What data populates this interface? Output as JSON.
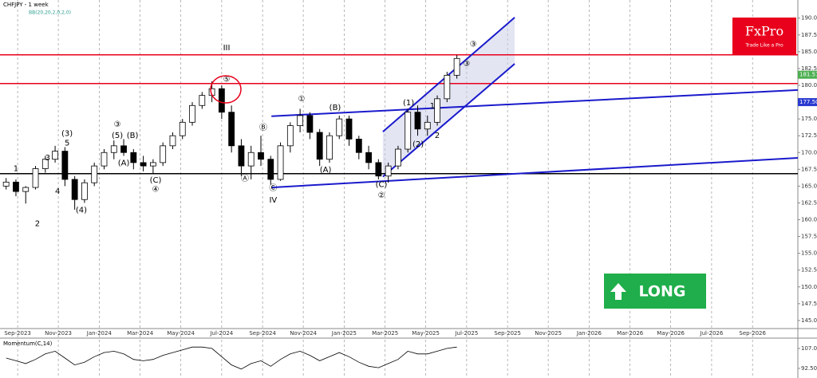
{
  "logo": {
    "name": "FxPro",
    "tagline": "Trade Like a Pro"
  },
  "badge": "LONG",
  "chart_data": [
    {
      "type": "candlestick",
      "title": "CHFJPY - 1 week",
      "subtitle": "BB(20,20,2,0,2,0)",
      "xlim": [
        2023.595,
        2026.852
      ],
      "ylim": [
        143.8,
        192.7
      ],
      "xticks": [
        {
          "value": 2023.667,
          "label": "Sep-2023"
        },
        {
          "value": 2023.833,
          "label": "Nov-2023"
        },
        {
          "value": 2024.0,
          "label": "Jan-2024"
        },
        {
          "value": 2024.167,
          "label": "Mar-2024"
        },
        {
          "value": 2024.333,
          "label": "May-2024"
        },
        {
          "value": 2024.5,
          "label": "Jul-2024"
        },
        {
          "value": 2024.667,
          "label": "Sep-2024"
        },
        {
          "value": 2024.833,
          "label": "Nov-2024"
        },
        {
          "value": 2025.0,
          "label": "Jan-2025"
        },
        {
          "value": 2025.167,
          "label": "Mar-2025"
        },
        {
          "value": 2025.333,
          "label": "May-2025"
        },
        {
          "value": 2025.5,
          "label": "Jul-2025"
        },
        {
          "value": 2025.667,
          "label": "Sep-2025"
        },
        {
          "value": 2025.833,
          "label": "Nov-2025"
        },
        {
          "value": 2026.0,
          "label": "Jan-2026"
        },
        {
          "value": 2026.167,
          "label": "Mar-2026"
        },
        {
          "value": 2026.333,
          "label": "May-2026"
        },
        {
          "value": 2026.5,
          "label": "Jul-2026"
        },
        {
          "value": 2026.667,
          "label": "Sep-2026"
        }
      ],
      "yticks": [
        {
          "value": 145,
          "label": "145.000"
        },
        {
          "value": 147.5,
          "label": "147.500"
        },
        {
          "value": 150,
          "label": "150.000"
        },
        {
          "value": 152.5,
          "label": "152.500"
        },
        {
          "value": 155,
          "label": "155.000"
        },
        {
          "value": 157.5,
          "label": "157.500"
        },
        {
          "value": 160,
          "label": "160.000"
        },
        {
          "value": 162.5,
          "label": "162.500"
        },
        {
          "value": 165,
          "label": "165.000"
        },
        {
          "value": 167.5,
          "label": "167.500"
        },
        {
          "value": 170,
          "label": "170.000"
        },
        {
          "value": 172.5,
          "label": "172.500"
        },
        {
          "value": 175,
          "label": "175.000"
        },
        {
          "value": 177.5,
          "label": "177.500"
        },
        {
          "value": 180,
          "label": "180.000"
        },
        {
          "value": 182.5,
          "label": "182.500"
        },
        {
          "value": 185,
          "label": "185.000"
        },
        {
          "value": 187.5,
          "label": "187.500"
        },
        {
          "value": 190,
          "label": "190.000"
        }
      ],
      "grid": true,
      "up_color": "#ffffff",
      "down_color": "#000000",
      "x": [
        2023.62,
        2023.66,
        2023.7,
        2023.74,
        2023.78,
        2023.82,
        2023.86,
        2023.9,
        2023.94,
        2023.98,
        2024.02,
        2024.06,
        2024.1,
        2024.14,
        2024.18,
        2024.22,
        2024.26,
        2024.3,
        2024.34,
        2024.38,
        2024.42,
        2024.46,
        2024.5,
        2024.54,
        2024.58,
        2024.62,
        2024.66,
        2024.7,
        2024.74,
        2024.78,
        2024.82,
        2024.86,
        2024.9,
        2024.94,
        2024.98,
        2025.02,
        2025.06,
        2025.1,
        2025.14,
        2025.18,
        2025.22,
        2025.26,
        2025.3,
        2025.34,
        2025.38,
        2025.42,
        2025.46
      ],
      "open": [
        165.0,
        165.6,
        164.2,
        164.8,
        167.6,
        169.0,
        170.2,
        166.0,
        163.0,
        165.5,
        168.0,
        170.0,
        171.0,
        170.0,
        168.5,
        168.0,
        168.5,
        171.0,
        172.5,
        174.5,
        177.0,
        178.5,
        179.5,
        176.0,
        171.0,
        168.0,
        170.0,
        169.0,
        166.0,
        171.0,
        174.0,
        175.5,
        173.0,
        169.0,
        172.5,
        175.0,
        172.0,
        170.0,
        168.5,
        166.5,
        168.0,
        170.5,
        176.0,
        173.5,
        174.5,
        178.0,
        181.5
      ],
      "high": [
        166.2,
        166.0,
        165.0,
        168.0,
        169.5,
        171.0,
        170.8,
        166.5,
        166.0,
        168.5,
        170.5,
        171.8,
        172.0,
        170.5,
        169.5,
        169.0,
        171.5,
        173.0,
        175.0,
        177.5,
        179.0,
        180.6,
        180.0,
        177.0,
        172.0,
        171.0,
        172.5,
        169.5,
        171.5,
        174.5,
        176.5,
        176.0,
        173.5,
        173.0,
        175.5,
        175.5,
        172.5,
        171.0,
        169.0,
        168.5,
        171.0,
        176.5,
        177.0,
        175.5,
        178.5,
        182.0,
        184.5
      ],
      "low": [
        164.5,
        163.5,
        162.4,
        164.5,
        167.0,
        168.5,
        165.0,
        161.5,
        162.5,
        165.0,
        167.5,
        169.0,
        169.5,
        167.5,
        167.2,
        166.8,
        168.0,
        170.5,
        172.0,
        174.0,
        176.5,
        177.5,
        175.0,
        170.0,
        166.5,
        166.0,
        168.0,
        165.2,
        165.8,
        170.0,
        173.0,
        172.0,
        168.0,
        168.5,
        172.0,
        171.0,
        169.0,
        167.5,
        166.0,
        165.5,
        167.5,
        170.0,
        172.5,
        172.5,
        174.0,
        177.5,
        181.0
      ],
      "close": [
        165.6,
        164.2,
        164.8,
        167.6,
        169.0,
        170.2,
        166.0,
        163.0,
        165.5,
        168.0,
        170.0,
        171.0,
        170.0,
        168.5,
        168.0,
        168.5,
        171.0,
        172.5,
        174.5,
        177.0,
        178.5,
        179.5,
        176.0,
        171.0,
        168.0,
        170.0,
        169.0,
        166.0,
        171.0,
        174.0,
        175.5,
        173.0,
        169.0,
        172.5,
        175.0,
        172.0,
        170.0,
        168.5,
        166.5,
        168.0,
        170.5,
        176.0,
        173.5,
        174.5,
        178.0,
        181.5,
        184.0
      ],
      "levels": [
        {
          "value": 184.54,
          "color": "#e8001c"
        },
        {
          "value": 180.27,
          "color": "#e8001c"
        },
        {
          "value": 166.85,
          "color": "#000000"
        }
      ],
      "trendlines": [
        {
          "x": [
            2024.703,
            2026.852
          ],
          "y": [
            175.4,
            179.3
          ],
          "color": "#1a1acc"
        },
        {
          "x": [
            2024.703,
            2026.852
          ],
          "y": [
            164.8,
            169.2
          ],
          "color": "#1a1acc"
        },
        {
          "x": [
            2025.158,
            2025.696
          ],
          "y": [
            173.1,
            190.1
          ],
          "color": "#1a1acc"
        },
        {
          "x": [
            2025.158,
            2025.696
          ],
          "y": [
            166.4,
            183.2
          ],
          "color": "#1a1acc"
        }
      ],
      "markers": [
        {
          "value": 181.579,
          "color": "#4caf50"
        },
        {
          "value": 177.501,
          "color": "#2a3ad0"
        }
      ],
      "annotations": [
        {
          "text": "1",
          "x": 2023.66,
          "y": 167.6
        },
        {
          "text": "2",
          "x": 2023.748,
          "y": 159.4
        },
        {
          "text": "(3)",
          "x": 2023.869,
          "y": 172.8
        },
        {
          "text": "5",
          "x": 2023.869,
          "y": 171.4
        },
        {
          "text": "3",
          "x": 2023.79,
          "y": 169.2
        },
        {
          "text": "4",
          "x": 2023.83,
          "y": 164.2
        },
        {
          "text": "(4)",
          "x": 2023.927,
          "y": 161.4
        },
        {
          "text": "③",
          "x": 2024.074,
          "y": 174.2
        },
        {
          "text": "(5)",
          "x": 2024.074,
          "y": 172.5
        },
        {
          "text": "(B)",
          "x": 2024.136,
          "y": 172.5
        },
        {
          "text": "(A)",
          "x": 2024.1,
          "y": 168.4
        },
        {
          "text": "(C)",
          "x": 2024.23,
          "y": 165.9
        },
        {
          "text": "④",
          "x": 2024.23,
          "y": 164.5
        },
        {
          "text": "III",
          "x": 2024.52,
          "y": 185.6
        },
        {
          "text": "⑤",
          "x": 2024.52,
          "y": 180.9
        },
        {
          "text": "Ⓐ",
          "x": 2024.595,
          "y": 166.1
        },
        {
          "text": "Ⓑ",
          "x": 2024.67,
          "y": 173.7
        },
        {
          "text": "Ⓒ",
          "x": 2024.71,
          "y": 164.7
        },
        {
          "text": "IV",
          "x": 2024.71,
          "y": 162.9
        },
        {
          "text": "①",
          "x": 2024.826,
          "y": 178.0
        },
        {
          "text": "(B)",
          "x": 2024.963,
          "y": 176.7
        },
        {
          "text": "(A)",
          "x": 2024.924,
          "y": 167.4
        },
        {
          "text": "(C)",
          "x": 2025.152,
          "y": 165.2
        },
        {
          "text": "②",
          "x": 2025.152,
          "y": 163.6
        },
        {
          "text": "(1)",
          "x": 2025.263,
          "y": 177.4
        },
        {
          "text": "1",
          "x": 2025.36,
          "y": 176.9
        },
        {
          "text": "(2)",
          "x": 2025.302,
          "y": 171.2
        },
        {
          "text": "2",
          "x": 2025.38,
          "y": 172.5
        },
        {
          "text": "③",
          "x": 2025.527,
          "y": 186.1
        },
        {
          "text": "③",
          "x": 2025.5,
          "y": 183.2
        }
      ]
    },
    {
      "type": "line",
      "title": "Momentum(C,14)",
      "color": "#000000",
      "xlim": [
        2023.595,
        2026.852
      ],
      "ylim": [
        85.5,
        114.5
      ],
      "yticks": [
        {
          "value": 92.5,
          "label": "92.50"
        },
        {
          "value": 107,
          "label": "107.00"
        }
      ],
      "x": [
        2023.62,
        2023.66,
        2023.7,
        2023.74,
        2023.78,
        2023.82,
        2023.86,
        2023.9,
        2023.94,
        2023.98,
        2024.02,
        2024.06,
        2024.1,
        2024.14,
        2024.18,
        2024.22,
        2024.26,
        2024.3,
        2024.34,
        2024.38,
        2024.42,
        2024.46,
        2024.5,
        2024.54,
        2024.58,
        2024.62,
        2024.66,
        2024.7,
        2024.74,
        2024.78,
        2024.82,
        2024.86,
        2024.9,
        2024.94,
        2024.98,
        2025.02,
        2025.06,
        2025.1,
        2025.14,
        2025.18,
        2025.22,
        2025.26,
        2025.3,
        2025.34,
        2025.38,
        2025.42,
        2025.46
      ],
      "values": [
        100,
        98,
        96,
        99,
        103,
        105,
        100,
        95,
        97,
        101,
        104,
        105,
        103,
        99,
        98,
        99,
        102,
        104,
        106,
        108,
        108,
        107,
        101,
        95,
        92,
        96,
        98,
        94,
        99,
        103,
        105,
        102,
        98,
        101,
        104,
        101,
        97,
        94,
        93,
        96,
        99,
        105,
        103,
        103,
        105,
        107,
        108
      ]
    }
  ]
}
